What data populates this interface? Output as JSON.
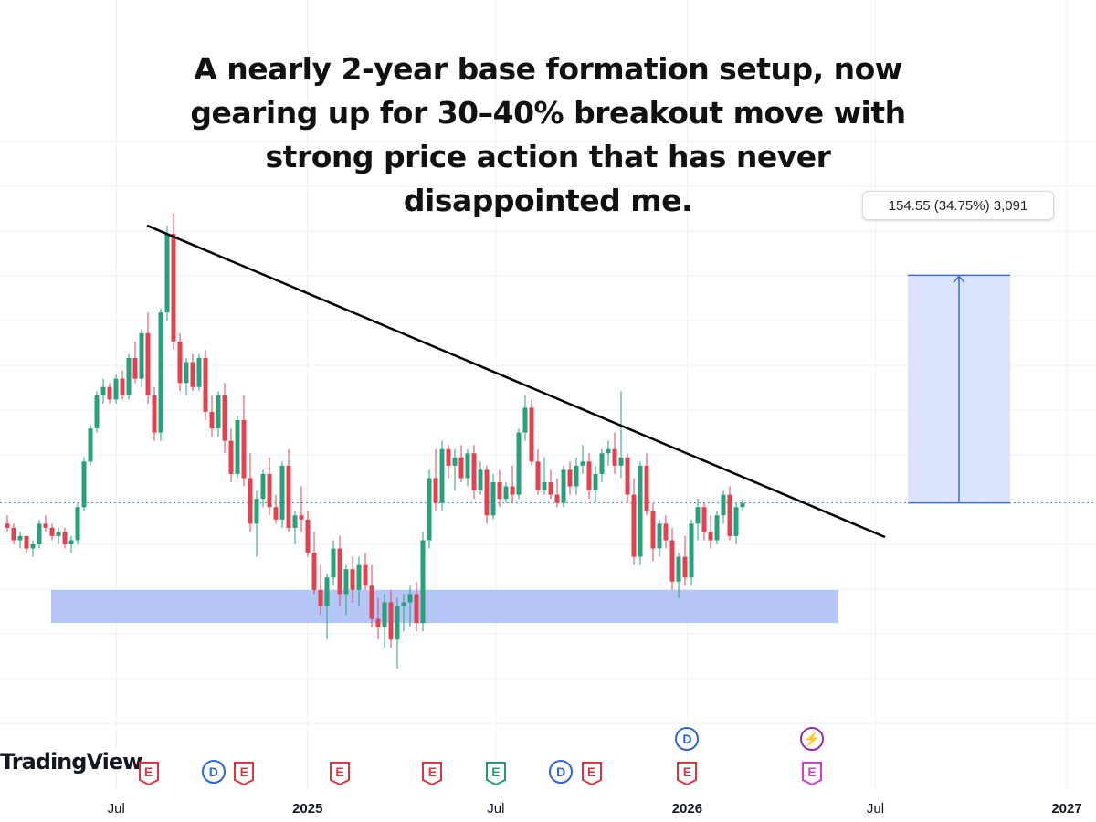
{
  "annotation": {
    "lines": [
      "A nearly 2-year base formation setup, now",
      "gearing up for 30–40% breakout move with",
      "strong price action that has never",
      "disappointed me."
    ]
  },
  "measure_label": "154.55 (34.75%) 3,091",
  "branding": "TradingView",
  "x_axis": {
    "ticks": [
      {
        "label": "Jul",
        "bold": false,
        "date": "2024-07"
      },
      {
        "label": "2025",
        "bold": true,
        "date": "2025-01"
      },
      {
        "label": "Jul",
        "bold": false,
        "date": "2025-07"
      },
      {
        "label": "2026",
        "bold": true,
        "date": "2026-01"
      },
      {
        "label": "Jul",
        "bold": false,
        "date": "2026-07"
      },
      {
        "label": "2027",
        "bold": true,
        "date": "2027-01"
      }
    ]
  },
  "events": [
    {
      "symbol": "E",
      "kind": "earnings",
      "color": "#e0353e",
      "date": "2024-08"
    },
    {
      "symbol": "D",
      "kind": "dividend",
      "color": "#2f64d8",
      "date": "2024-09"
    },
    {
      "symbol": "E",
      "kind": "earnings",
      "color": "#e0353e",
      "date": "2024-11"
    },
    {
      "symbol": "E",
      "kind": "earnings",
      "color": "#e0353e",
      "date": "2025-02"
    },
    {
      "symbol": "E",
      "kind": "earnings",
      "color": "#e0353e",
      "date": "2025-05"
    },
    {
      "symbol": "E",
      "kind": "earnings",
      "color": "#1e9e72",
      "date": "2025-07"
    },
    {
      "symbol": "D",
      "kind": "dividend",
      "color": "#2f64d8",
      "date": "2025-08"
    },
    {
      "symbol": "E",
      "kind": "earnings",
      "color": "#e0353e",
      "date": "2025-10"
    },
    {
      "symbol": "D",
      "kind": "dividend",
      "color": "#2f64d8",
      "date": "2026-01"
    },
    {
      "symbol": "E",
      "kind": "earnings",
      "color": "#e0353e",
      "date": "2026-01"
    },
    {
      "symbol": "⚡",
      "kind": "split",
      "color": "#9c27b0",
      "date": "2026-05"
    },
    {
      "symbol": "E",
      "kind": "earnings",
      "color": "#d63bd8",
      "date": "2026-05"
    }
  ],
  "colors": {
    "up": "#26a17b",
    "down": "#e4404f",
    "support_zone": "#a9bcf5",
    "target_zone": "#dbe4fb",
    "target_arrow": "#3a6fd8",
    "trendline": "#000000",
    "last_price_line": "#3a8fd8"
  },
  "chart_data": {
    "type": "candlestick",
    "interval": "weekly",
    "price_scale": "relative",
    "ohlc": [
      [
        90,
        92,
        88,
        89
      ],
      [
        89,
        90,
        85,
        86
      ],
      [
        86,
        88,
        84,
        87
      ],
      [
        87,
        87,
        83,
        84
      ],
      [
        84,
        86,
        82,
        85
      ],
      [
        85,
        91,
        84,
        90
      ],
      [
        90,
        92,
        88,
        89
      ],
      [
        89,
        90,
        86,
        87
      ],
      [
        87,
        89,
        85,
        88
      ],
      [
        88,
        89,
        84,
        85
      ],
      [
        85,
        87,
        83,
        86
      ],
      [
        86,
        95,
        85,
        94
      ],
      [
        94,
        106,
        93,
        105
      ],
      [
        105,
        114,
        104,
        113
      ],
      [
        113,
        122,
        112,
        121
      ],
      [
        121,
        125,
        119,
        123
      ],
      [
        123,
        124,
        119,
        120
      ],
      [
        120,
        126,
        119,
        125
      ],
      [
        125,
        127,
        120,
        121
      ],
      [
        121,
        131,
        120,
        130
      ],
      [
        130,
        134,
        124,
        125
      ],
      [
        125,
        137,
        123,
        136
      ],
      [
        136,
        141,
        119,
        121
      ],
      [
        121,
        123,
        110,
        112
      ],
      [
        112,
        142,
        110,
        141
      ],
      [
        141,
        162,
        139,
        160
      ],
      [
        160,
        165,
        132,
        134
      ],
      [
        134,
        136,
        122,
        124
      ],
      [
        124,
        130,
        121,
        129
      ],
      [
        129,
        131,
        122,
        123
      ],
      [
        123,
        131,
        122,
        130
      ],
      [
        130,
        132,
        115,
        117
      ],
      [
        117,
        121,
        111,
        113
      ],
      [
        113,
        122,
        111,
        121
      ],
      [
        121,
        124,
        107,
        110
      ],
      [
        110,
        113,
        100,
        102
      ],
      [
        102,
        116,
        101,
        115
      ],
      [
        115,
        121,
        99,
        101
      ],
      [
        101,
        107,
        88,
        90
      ],
      [
        90,
        98,
        82,
        96
      ],
      [
        96,
        103,
        94,
        102
      ],
      [
        102,
        106,
        92,
        94
      ],
      [
        94,
        97,
        90,
        91
      ],
      [
        91,
        105,
        89,
        104
      ],
      [
        104,
        108,
        88,
        89
      ],
      [
        89,
        93,
        85,
        92
      ],
      [
        92,
        99,
        88,
        91
      ],
      [
        91,
        93,
        82,
        83
      ],
      [
        83,
        88,
        73,
        74
      ],
      [
        74,
        80,
        68,
        70
      ],
      [
        70,
        78,
        62,
        77
      ],
      [
        77,
        86,
        75,
        84
      ],
      [
        84,
        87,
        70,
        73
      ],
      [
        73,
        80,
        68,
        79
      ],
      [
        79,
        82,
        71,
        74
      ],
      [
        74,
        82,
        70,
        80
      ],
      [
        80,
        83,
        74,
        75
      ],
      [
        75,
        80,
        65,
        67
      ],
      [
        67,
        72,
        62,
        65
      ],
      [
        65,
        73,
        60,
        71
      ],
      [
        71,
        74,
        60,
        62
      ],
      [
        62,
        72,
        55,
        70
      ],
      [
        70,
        73,
        64,
        71
      ],
      [
        71,
        75,
        65,
        73
      ],
      [
        73,
        76,
        64,
        66
      ],
      [
        66,
        88,
        64,
        86
      ],
      [
        86,
        103,
        84,
        101
      ],
      [
        101,
        108,
        93,
        95
      ],
      [
        95,
        110,
        93,
        108
      ],
      [
        108,
        109,
        101,
        104
      ],
      [
        104,
        108,
        98,
        106
      ],
      [
        106,
        109,
        100,
        101
      ],
      [
        101,
        108,
        99,
        107
      ],
      [
        107,
        109,
        96,
        98
      ],
      [
        98,
        105,
        97,
        103
      ],
      [
        103,
        104,
        90,
        92
      ],
      [
        92,
        102,
        91,
        100
      ],
      [
        100,
        103,
        94,
        96
      ],
      [
        96,
        100,
        95,
        99
      ],
      [
        99,
        104,
        95,
        97
      ],
      [
        97,
        113,
        96,
        112
      ],
      [
        112,
        121,
        110,
        118
      ],
      [
        118,
        120,
        104,
        105
      ],
      [
        105,
        108,
        97,
        98
      ],
      [
        98,
        106,
        97,
        100
      ],
      [
        100,
        103,
        96,
        97
      ],
      [
        97,
        101,
        94,
        95
      ],
      [
        95,
        104,
        94,
        103
      ],
      [
        103,
        105,
        97,
        99
      ],
      [
        99,
        106,
        97,
        104
      ],
      [
        104,
        109,
        102,
        105
      ],
      [
        105,
        107,
        96,
        98
      ],
      [
        98,
        104,
        95,
        102
      ],
      [
        102,
        108,
        100,
        107
      ],
      [
        107,
        110,
        104,
        108
      ],
      [
        108,
        112,
        102,
        104
      ],
      [
        104,
        122,
        101,
        106
      ],
      [
        106,
        107,
        95,
        97
      ],
      [
        97,
        101,
        80,
        82
      ],
      [
        82,
        105,
        80,
        104
      ],
      [
        104,
        107,
        92,
        93
      ],
      [
        93,
        95,
        81,
        84
      ],
      [
        84,
        91,
        82,
        90
      ],
      [
        90,
        92,
        84,
        86
      ],
      [
        86,
        89,
        74,
        76
      ],
      [
        76,
        83,
        72,
        82
      ],
      [
        82,
        87,
        75,
        77
      ],
      [
        77,
        91,
        75,
        90
      ],
      [
        90,
        96,
        86,
        94
      ],
      [
        94,
        95,
        86,
        88
      ],
      [
        88,
        92,
        84,
        86
      ],
      [
        86,
        93,
        85,
        92
      ],
      [
        92,
        98,
        90,
        97
      ],
      [
        97,
        99,
        86,
        87
      ],
      [
        87,
        95,
        85,
        94
      ],
      [
        94,
        96,
        93,
        95
      ]
    ],
    "trendline": {
      "from_index": 23,
      "from_price": 162,
      "to_index": 128,
      "to_price": 85
    },
    "support_zone": {
      "from_index": 8,
      "to_index": 130,
      "low": 66,
      "high": 74
    },
    "last_price": 95,
    "target": {
      "from_price": 95,
      "to_price": 150,
      "change": 154.55,
      "change_percent": 34.75,
      "bars": 3091
    }
  }
}
